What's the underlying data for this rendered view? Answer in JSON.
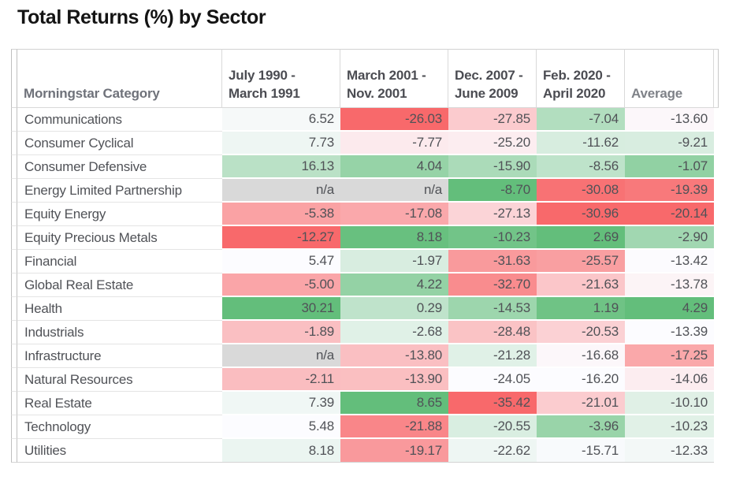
{
  "title": "Total Returns (%) by Sector",
  "chart_data": {
    "type": "heatmap",
    "title": "Total Returns (%) by Sector",
    "row_header": "Morningstar Category",
    "columns": [
      {
        "lines": [
          "July 1990 -",
          "March 1991"
        ]
      },
      {
        "lines": [
          "March 2001 -",
          "Nov. 2001"
        ]
      },
      {
        "lines": [
          "Dec. 2007 -",
          "June 2009"
        ]
      },
      {
        "lines": [
          "Feb. 2020 -",
          "April 2020"
        ]
      },
      {
        "lines": [
          "Average"
        ]
      }
    ],
    "na_label": "n/a",
    "rows": [
      {
        "category": "Communications",
        "values": [
          6.52,
          -26.03,
          -27.85,
          -7.04,
          -13.6
        ]
      },
      {
        "category": "Consumer Cyclical",
        "values": [
          7.73,
          -7.77,
          -25.2,
          -11.62,
          -9.21
        ]
      },
      {
        "category": "Consumer Defensive",
        "values": [
          16.13,
          4.04,
          -15.9,
          -8.56,
          -1.07
        ]
      },
      {
        "category": "Energy Limited Partnership",
        "values": [
          null,
          null,
          -8.7,
          -30.08,
          -19.39
        ]
      },
      {
        "category": "Equity Energy",
        "values": [
          -5.38,
          -17.08,
          -27.13,
          -30.96,
          -20.14
        ]
      },
      {
        "category": "Equity Precious Metals",
        "values": [
          -12.27,
          8.18,
          -10.23,
          2.69,
          -2.9
        ]
      },
      {
        "category": "Financial",
        "values": [
          5.47,
          -1.97,
          -31.63,
          -25.57,
          -13.42
        ]
      },
      {
        "category": "Global Real Estate",
        "values": [
          -5.0,
          4.22,
          -32.7,
          -21.63,
          -13.78
        ]
      },
      {
        "category": "Health",
        "values": [
          30.21,
          0.29,
          -14.53,
          1.19,
          4.29
        ]
      },
      {
        "category": "Industrials",
        "values": [
          -1.89,
          -2.68,
          -28.48,
          -20.53,
          -13.39
        ]
      },
      {
        "category": "Infrastructure",
        "values": [
          null,
          -13.8,
          -21.28,
          -16.68,
          -17.25
        ]
      },
      {
        "category": "Natural Resources",
        "values": [
          -2.11,
          -13.9,
          -24.05,
          -16.2,
          -14.06
        ]
      },
      {
        "category": "Real Estate",
        "values": [
          7.39,
          8.65,
          -35.42,
          -21.01,
          -10.1
        ]
      },
      {
        "category": "Technology",
        "values": [
          5.48,
          -21.88,
          -20.55,
          -3.96,
          -10.23
        ]
      },
      {
        "category": "Utilities",
        "values": [
          8.18,
          -19.17,
          -22.62,
          -15.71,
          -12.33
        ]
      }
    ],
    "colors": {
      "negative_extreme": "#f8696b",
      "midpoint": "#fcfcff",
      "positive_extreme": "#63be7b",
      "na_background": "#d9d9d9"
    },
    "scale_note": "per-column 3-color scale: column min = red, column median = white, column max = green",
    "value_format": "2 decimals"
  }
}
